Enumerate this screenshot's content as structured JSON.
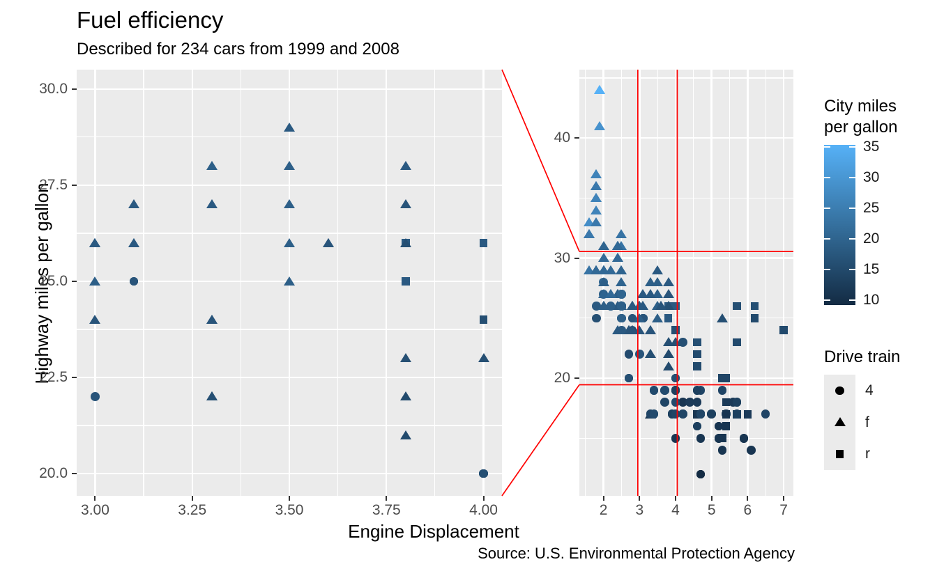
{
  "header": {
    "title": "Fuel efficiency",
    "subtitle": "Described for 234 cars from 1999 and 2008"
  },
  "axes": {
    "x_title": "Engine Displacement",
    "y_title": "Highway miles per gallon"
  },
  "caption": "Source: U.S. Environmental Protection Agency",
  "legends": {
    "color": {
      "title": "City miles\nper gallon",
      "ticks": [
        "35",
        "30",
        "25",
        "20",
        "15",
        "10"
      ],
      "low_color": "#132B43",
      "high_color": "#56B1F7",
      "domain": [
        9,
        35
      ]
    },
    "shape": {
      "title": "Drive train",
      "items": [
        {
          "glyph": "circle",
          "label": "4"
        },
        {
          "glyph": "triangle",
          "label": "f"
        },
        {
          "glyph": "square",
          "label": "r"
        }
      ]
    }
  },
  "chart_data": {
    "type": "scatter",
    "title": "Fuel efficiency",
    "subtitle": "Described for 234 cars from 1999 and 2008",
    "xlabel": "Engine Displacement",
    "ylabel": "Highway miles per gallon",
    "color_variable": "cty",
    "shape_variable": "drv",
    "zoom_panel": {
      "x_tick_labels": [
        "3.00",
        "3.25",
        "3.50",
        "3.75",
        "4.00"
      ],
      "y_tick_labels": [
        "30.0",
        "27.5",
        "25.0",
        "22.5",
        "20.0"
      ],
      "x_minor": [
        3.125,
        3.375,
        3.625,
        3.875
      ],
      "y_minor": [
        28.75,
        26.25,
        23.75,
        21.25
      ],
      "xlim": [
        2.9525,
        4.0475
      ],
      "ylim": [
        19.42,
        30.505
      ]
    },
    "full_panel": {
      "x_tick_labels": [
        "2",
        "3",
        "4",
        "5",
        "6",
        "7"
      ],
      "y_tick_labels": [
        "40",
        "30",
        "20"
      ],
      "x_minor": [
        1.5,
        2.5,
        3.5,
        4.5,
        5.5,
        6.5
      ],
      "y_minor": [
        45,
        35,
        25,
        15
      ],
      "xlim": [
        1.33,
        7.27
      ],
      "ylim": [
        10.2,
        45.7
      ]
    },
    "zoom_rect": {
      "xmin": 2.9525,
      "xmax": 4.0475,
      "ymin": 19.45,
      "ymax": 30.55
    },
    "zoom_line_color": "#FF0000",
    "panel_bg": "#EBEBEB",
    "points_format": [
      "displ",
      "hwy",
      "cty",
      "drv"
    ],
    "points": [
      [
        1.8,
        29,
        18,
        "f"
      ],
      [
        1.8,
        29,
        21,
        "f"
      ],
      [
        2.0,
        31,
        20,
        "f"
      ],
      [
        2.0,
        30,
        21,
        "f"
      ],
      [
        2.8,
        26,
        16,
        "f"
      ],
      [
        2.8,
        26,
        18,
        "f"
      ],
      [
        3.1,
        27,
        18,
        "f"
      ],
      [
        1.8,
        26,
        18,
        "4"
      ],
      [
        1.8,
        25,
        16,
        "4"
      ],
      [
        2.0,
        28,
        20,
        "4"
      ],
      [
        2.0,
        27,
        19,
        "4"
      ],
      [
        2.8,
        25,
        15,
        "4"
      ],
      [
        2.8,
        25,
        17,
        "4"
      ],
      [
        3.1,
        25,
        17,
        "4"
      ],
      [
        3.1,
        25,
        15,
        "4"
      ],
      [
        2.8,
        24,
        15,
        "4"
      ],
      [
        3.1,
        25,
        17,
        "4"
      ],
      [
        4.2,
        23,
        16,
        "4"
      ],
      [
        5.3,
        20,
        14,
        "r"
      ],
      [
        5.3,
        15,
        11,
        "r"
      ],
      [
        5.3,
        20,
        14,
        "r"
      ],
      [
        5.7,
        17,
        13,
        "r"
      ],
      [
        6.0,
        17,
        12,
        "r"
      ],
      [
        5.7,
        26,
        16,
        "r"
      ],
      [
        5.7,
        23,
        15,
        "r"
      ],
      [
        6.2,
        26,
        16,
        "r"
      ],
      [
        6.2,
        25,
        15,
        "r"
      ],
      [
        7.0,
        24,
        15,
        "r"
      ],
      [
        5.3,
        19,
        14,
        "4"
      ],
      [
        5.3,
        14,
        11,
        "4"
      ],
      [
        5.7,
        17,
        14,
        "4"
      ],
      [
        6.5,
        17,
        14,
        "4"
      ],
      [
        2.4,
        27,
        19,
        "f"
      ],
      [
        2.4,
        30,
        22,
        "f"
      ],
      [
        3.1,
        26,
        18,
        "f"
      ],
      [
        3.5,
        29,
        18,
        "f"
      ],
      [
        3.6,
        26,
        17,
        "f"
      ],
      [
        2.4,
        24,
        18,
        "f"
      ],
      [
        3.0,
        24,
        17,
        "f"
      ],
      [
        3.3,
        22,
        16,
        "f"
      ],
      [
        3.3,
        22,
        16,
        "f"
      ],
      [
        3.3,
        24,
        17,
        "f"
      ],
      [
        3.3,
        24,
        17,
        "f"
      ],
      [
        3.3,
        17,
        11,
        "f"
      ],
      [
        3.8,
        22,
        15,
        "f"
      ],
      [
        3.8,
        21,
        15,
        "f"
      ],
      [
        3.8,
        23,
        16,
        "f"
      ],
      [
        4.0,
        23,
        16,
        "f"
      ],
      [
        3.7,
        19,
        15,
        "4"
      ],
      [
        3.7,
        18,
        14,
        "4"
      ],
      [
        3.9,
        17,
        13,
        "4"
      ],
      [
        3.9,
        17,
        13,
        "4"
      ],
      [
        4.7,
        17,
        14,
        "4"
      ],
      [
        4.7,
        17,
        14,
        "4"
      ],
      [
        4.7,
        12,
        9,
        "4"
      ],
      [
        5.2,
        15,
        11,
        "4"
      ],
      [
        5.2,
        16,
        11,
        "4"
      ],
      [
        3.9,
        17,
        13,
        "4"
      ],
      [
        4.7,
        17,
        13,
        "4"
      ],
      [
        4.7,
        12,
        9,
        "4"
      ],
      [
        4.7,
        17,
        13,
        "4"
      ],
      [
        5.2,
        16,
        11,
        "4"
      ],
      [
        5.7,
        18,
        13,
        "4"
      ],
      [
        5.9,
        15,
        11,
        "4"
      ],
      [
        4.7,
        17,
        13,
        "4"
      ],
      [
        4.7,
        12,
        9,
        "4"
      ],
      [
        4.7,
        17,
        13,
        "4"
      ],
      [
        4.7,
        17,
        13,
        "4"
      ],
      [
        4.7,
        12,
        9,
        "4"
      ],
      [
        4.7,
        17,
        13,
        "4"
      ],
      [
        5.2,
        15,
        11,
        "4"
      ],
      [
        5.2,
        16,
        11,
        "4"
      ],
      [
        5.7,
        17,
        13,
        "4"
      ],
      [
        5.9,
        15,
        11,
        "4"
      ],
      [
        4.6,
        17,
        11,
        "r"
      ],
      [
        5.4,
        17,
        11,
        "r"
      ],
      [
        5.4,
        18,
        12,
        "r"
      ],
      [
        4.0,
        17,
        14,
        "4"
      ],
      [
        4.0,
        19,
        13,
        "4"
      ],
      [
        4.0,
        19,
        13,
        "4"
      ],
      [
        4.0,
        19,
        14,
        "4"
      ],
      [
        4.6,
        19,
        13,
        "4"
      ],
      [
        5.0,
        17,
        13,
        "4"
      ],
      [
        4.2,
        17,
        14,
        "4"
      ],
      [
        4.2,
        17,
        14,
        "4"
      ],
      [
        4.6,
        16,
        13,
        "4"
      ],
      [
        4.6,
        16,
        13,
        "4"
      ],
      [
        4.6,
        16,
        13,
        "4"
      ],
      [
        5.4,
        17,
        13,
        "4"
      ],
      [
        5.4,
        17,
        13,
        "4"
      ],
      [
        3.8,
        26,
        18,
        "r"
      ],
      [
        3.8,
        25,
        18,
        "r"
      ],
      [
        4.0,
        26,
        18,
        "r"
      ],
      [
        4.0,
        24,
        16,
        "r"
      ],
      [
        4.6,
        21,
        15,
        "r"
      ],
      [
        4.6,
        22,
        15,
        "r"
      ],
      [
        4.6,
        23,
        16,
        "r"
      ],
      [
        4.6,
        22,
        15,
        "r"
      ],
      [
        5.4,
        20,
        14,
        "r"
      ],
      [
        1.6,
        33,
        28,
        "f"
      ],
      [
        1.6,
        32,
        25,
        "f"
      ],
      [
        1.6,
        32,
        24,
        "f"
      ],
      [
        1.6,
        29,
        23,
        "f"
      ],
      [
        1.6,
        32,
        24,
        "f"
      ],
      [
        1.8,
        34,
        26,
        "f"
      ],
      [
        1.8,
        36,
        25,
        "f"
      ],
      [
        1.8,
        36,
        24,
        "f"
      ],
      [
        2.0,
        29,
        21,
        "f"
      ],
      [
        2.4,
        26,
        18,
        "f"
      ],
      [
        2.4,
        27,
        18,
        "f"
      ],
      [
        2.4,
        30,
        21,
        "f"
      ],
      [
        2.4,
        31,
        21,
        "f"
      ],
      [
        2.5,
        26,
        18,
        "f"
      ],
      [
        2.5,
        26,
        18,
        "f"
      ],
      [
        3.3,
        28,
        19,
        "f"
      ],
      [
        2.0,
        26,
        19,
        "f"
      ],
      [
        2.0,
        29,
        19,
        "f"
      ],
      [
        2.0,
        29,
        19,
        "f"
      ],
      [
        2.0,
        27,
        20,
        "f"
      ],
      [
        2.7,
        24,
        17,
        "f"
      ],
      [
        2.7,
        24,
        16,
        "f"
      ],
      [
        2.7,
        24,
        17,
        "f"
      ],
      [
        3.0,
        22,
        17,
        "4"
      ],
      [
        3.7,
        19,
        15,
        "4"
      ],
      [
        4.0,
        20,
        15,
        "4"
      ],
      [
        4.7,
        17,
        14,
        "4"
      ],
      [
        4.7,
        12,
        9,
        "4"
      ],
      [
        4.7,
        19,
        14,
        "4"
      ],
      [
        5.7,
        18,
        13,
        "4"
      ],
      [
        6.1,
        14,
        11,
        "4"
      ],
      [
        4.0,
        15,
        11,
        "4"
      ],
      [
        4.2,
        18,
        11,
        "4"
      ],
      [
        4.4,
        18,
        12,
        "4"
      ],
      [
        4.6,
        18,
        12,
        "4"
      ],
      [
        5.4,
        16,
        11,
        "r"
      ],
      [
        5.4,
        17,
        11,
        "r"
      ],
      [
        5.4,
        18,
        12,
        "r"
      ],
      [
        4.0,
        17,
        14,
        "4"
      ],
      [
        4.0,
        19,
        13,
        "4"
      ],
      [
        4.6,
        19,
        13,
        "4"
      ],
      [
        5.0,
        17,
        13,
        "4"
      ],
      [
        2.4,
        27,
        19,
        "f"
      ],
      [
        2.4,
        31,
        23,
        "f"
      ],
      [
        2.5,
        32,
        23,
        "f"
      ],
      [
        2.5,
        31,
        23,
        "f"
      ],
      [
        3.5,
        27,
        19,
        "f"
      ],
      [
        3.5,
        26,
        19,
        "f"
      ],
      [
        3.0,
        26,
        18,
        "f"
      ],
      [
        3.0,
        25,
        19,
        "f"
      ],
      [
        3.5,
        25,
        19,
        "f"
      ],
      [
        3.3,
        17,
        14,
        "4"
      ],
      [
        3.3,
        17,
        14,
        "4"
      ],
      [
        4.0,
        20,
        14,
        "4"
      ],
      [
        5.6,
        18,
        12,
        "4"
      ],
      [
        3.1,
        26,
        18,
        "f"
      ],
      [
        3.8,
        26,
        16,
        "f"
      ],
      [
        3.8,
        27,
        17,
        "f"
      ],
      [
        3.8,
        28,
        18,
        "f"
      ],
      [
        5.3,
        25,
        16,
        "f"
      ],
      [
        2.5,
        25,
        18,
        "4"
      ],
      [
        2.5,
        24,
        18,
        "4"
      ],
      [
        2.5,
        27,
        20,
        "4"
      ],
      [
        2.5,
        26,
        19,
        "4"
      ],
      [
        2.5,
        26,
        20,
        "4"
      ],
      [
        2.5,
        25,
        19,
        "4"
      ],
      [
        2.2,
        26,
        21,
        "4"
      ],
      [
        2.2,
        26,
        19,
        "4"
      ],
      [
        2.5,
        26,
        19,
        "4"
      ],
      [
        2.5,
        26,
        19,
        "4"
      ],
      [
        2.5,
        25,
        19,
        "4"
      ],
      [
        2.5,
        27,
        20,
        "4"
      ],
      [
        2.5,
        27,
        20,
        "4"
      ],
      [
        2.5,
        26,
        19,
        "4"
      ],
      [
        2.7,
        20,
        15,
        "4"
      ],
      [
        2.7,
        20,
        16,
        "4"
      ],
      [
        3.4,
        19,
        15,
        "4"
      ],
      [
        3.4,
        17,
        15,
        "4"
      ],
      [
        4.0,
        20,
        16,
        "4"
      ],
      [
        4.7,
        17,
        14,
        "4"
      ],
      [
        2.2,
        29,
        21,
        "f"
      ],
      [
        2.2,
        27,
        21,
        "f"
      ],
      [
        2.4,
        31,
        21,
        "f"
      ],
      [
        2.4,
        31,
        21,
        "f"
      ],
      [
        3.0,
        26,
        18,
        "f"
      ],
      [
        3.0,
        26,
        18,
        "f"
      ],
      [
        3.5,
        28,
        19,
        "f"
      ],
      [
        2.2,
        29,
        21,
        "f"
      ],
      [
        2.2,
        27,
        21,
        "f"
      ],
      [
        2.4,
        31,
        21,
        "f"
      ],
      [
        2.4,
        31,
        21,
        "f"
      ],
      [
        3.0,
        26,
        18,
        "f"
      ],
      [
        3.0,
        26,
        18,
        "f"
      ],
      [
        3.3,
        27,
        18,
        "f"
      ],
      [
        1.8,
        35,
        26,
        "f"
      ],
      [
        1.8,
        37,
        28,
        "f"
      ],
      [
        1.8,
        37,
        26,
        "f"
      ],
      [
        1.8,
        33,
        24,
        "f"
      ],
      [
        1.8,
        35,
        26,
        "f"
      ],
      [
        4.7,
        15,
        11,
        "4"
      ],
      [
        5.7,
        18,
        13,
        "4"
      ],
      [
        2.7,
        20,
        15,
        "4"
      ],
      [
        2.7,
        20,
        16,
        "4"
      ],
      [
        2.7,
        22,
        15,
        "4"
      ],
      [
        3.4,
        17,
        15,
        "4"
      ],
      [
        3.4,
        19,
        15,
        "4"
      ],
      [
        4.0,
        18,
        15,
        "4"
      ],
      [
        4.0,
        20,
        16,
        "4"
      ],
      [
        2.0,
        29,
        21,
        "f"
      ],
      [
        2.0,
        26,
        19,
        "f"
      ],
      [
        2.0,
        29,
        21,
        "f"
      ],
      [
        2.0,
        29,
        22,
        "f"
      ],
      [
        2.8,
        24,
        17,
        "f"
      ],
      [
        1.9,
        44,
        33,
        "f"
      ],
      [
        2.0,
        29,
        21,
        "f"
      ],
      [
        2.0,
        26,
        19,
        "f"
      ],
      [
        2.0,
        29,
        21,
        "f"
      ],
      [
        2.0,
        29,
        22,
        "f"
      ],
      [
        2.5,
        29,
        21,
        "f"
      ],
      [
        2.5,
        29,
        21,
        "f"
      ],
      [
        2.8,
        24,
        17,
        "f"
      ],
      [
        2.8,
        24,
        17,
        "f"
      ],
      [
        1.9,
        44,
        35,
        "f"
      ],
      [
        1.9,
        41,
        29,
        "f"
      ],
      [
        2.0,
        26,
        19,
        "f"
      ],
      [
        2.0,
        29,
        21,
        "f"
      ],
      [
        2.5,
        28,
        20,
        "f"
      ],
      [
        2.5,
        29,
        20,
        "f"
      ],
      [
        1.8,
        29,
        21,
        "f"
      ],
      [
        1.8,
        29,
        21,
        "f"
      ],
      [
        2.0,
        28,
        19,
        "f"
      ],
      [
        2.0,
        29,
        21,
        "f"
      ],
      [
        2.8,
        26,
        16,
        "f"
      ],
      [
        2.8,
        26,
        18,
        "f"
      ],
      [
        3.6,
        26,
        17,
        "f"
      ]
    ]
  }
}
